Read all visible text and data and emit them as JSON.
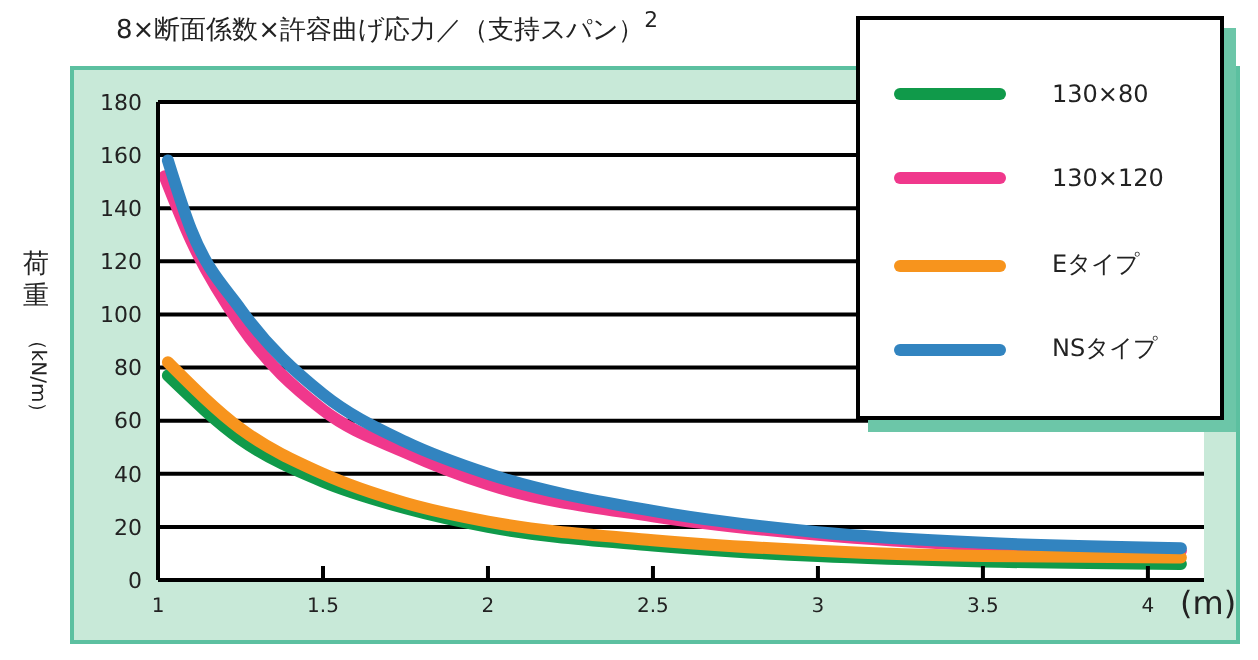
{
  "chart_data": {
    "type": "line",
    "title": "8×断面係数×許容曲げ応力／（支持スパン）$^{2}$",
    "ylabel": "荷重（kN/m）",
    "xlabel": "(m)",
    "xlim": [
      1,
      4.17
    ],
    "xticks": [
      1,
      1.5,
      2,
      2.5,
      3,
      3.5,
      4
    ],
    "ylim": [
      0,
      180
    ],
    "yticks": [
      0,
      20,
      40,
      60,
      80,
      100,
      120,
      140,
      160,
      180
    ],
    "grid": "y",
    "legend": "top right",
    "marker": "none",
    "line_style": "solid",
    "series": [
      {
        "name": "130×80",
        "color": "#109a4a",
        "x": [
          1.03,
          1.25,
          1.5,
          1.75,
          2,
          2.5,
          3,
          3.5,
          4.1
        ],
        "values": [
          77,
          53,
          37,
          27,
          20,
          13,
          9,
          7,
          6
        ]
      },
      {
        "name": "130×120",
        "color": "#f0388c",
        "x": [
          1.02,
          1.1,
          1.25,
          1.5,
          1.75,
          2,
          2.5,
          3,
          3.5,
          4.1
        ],
        "values": [
          152,
          128,
          96,
          64,
          48,
          36,
          24,
          17,
          13,
          11
        ]
      },
      {
        "name": "Eタイプ",
        "color": "#f7941d",
        "x": [
          1.03,
          1.25,
          1.5,
          1.75,
          2,
          2.5,
          3,
          3.5,
          4.1
        ],
        "values": [
          82,
          57,
          40,
          29,
          22,
          15,
          11,
          9,
          8.5
        ]
      },
      {
        "name": "NSタイプ",
        "color": "#3284c0",
        "x": [
          1.03,
          1.1,
          1.25,
          1.5,
          1.75,
          2,
          2.5,
          3,
          3.5,
          4.1
        ],
        "values": [
          158,
          132,
          102,
          70,
          52,
          40,
          26,
          18,
          14,
          12
        ]
      }
    ]
  }
}
